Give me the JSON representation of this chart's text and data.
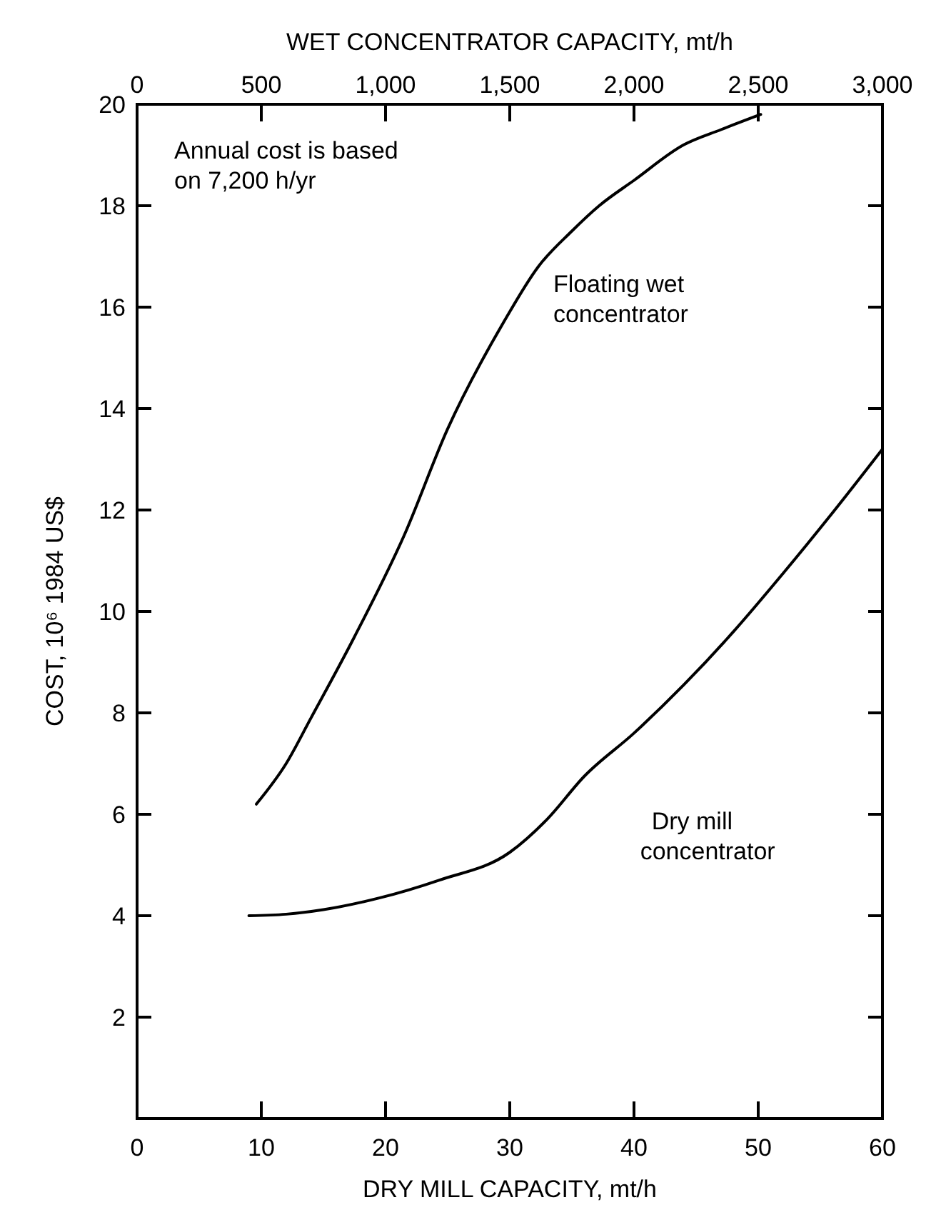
{
  "chart_data": {
    "type": "line",
    "xlabel": "DRY MILL CAPACITY, mt/h",
    "ylabel": "COST, 10⁶ 1984 US$",
    "x2label": "WET CONCENTRATOR CAPACITY, mt/h",
    "xlim": [
      0,
      60
    ],
    "xticks": [
      0,
      10,
      20,
      30,
      40,
      50,
      60
    ],
    "x2lim": [
      0,
      3000
    ],
    "x2ticks": [
      0,
      500,
      {
        "value": 1000,
        "label": "1,000"
      },
      {
        "value": 1500,
        "label": "1,500"
      },
      {
        "value": 2000,
        "label": "2,000"
      },
      {
        "value": 2500,
        "label": "2,500"
      },
      {
        "value": 3000,
        "label": "3,000"
      }
    ],
    "ylim": [
      0,
      20
    ],
    "yticks": [
      {
        "value": 0,
        "label": null
      },
      2,
      4,
      6,
      8,
      10,
      12,
      14,
      16,
      18,
      20
    ],
    "grid": false,
    "marker": "none",
    "line_style": "solid",
    "annotations": [
      {
        "text": "Annual cost is based on 7,200 h/yr"
      }
    ],
    "series": [
      {
        "name": "Floating wet concentrator",
        "color": "#000000",
        "x": [
          9.6,
          12,
          14,
          17.5,
          21.5,
          25,
          29.5,
          32.3,
          35,
          37.2,
          40,
          44,
          47,
          50.2
        ],
        "values": [
          6.2,
          7.0,
          7.9,
          9.5,
          11.5,
          13.6,
          15.7,
          16.8,
          17.5,
          18.0,
          18.5,
          19.2,
          19.5,
          19.8
        ]
      },
      {
        "name": "Dry mill concentrator",
        "color": "#000000",
        "x": [
          9,
          12,
          15,
          19.5,
          24.3,
          30,
          33,
          36,
          40,
          44,
          48,
          52,
          56,
          60
        ],
        "values": [
          4.0,
          4.03,
          4.12,
          4.35,
          4.7,
          5.25,
          5.9,
          6.75,
          7.6,
          8.55,
          9.6,
          10.75,
          11.95,
          13.2
        ]
      }
    ]
  }
}
